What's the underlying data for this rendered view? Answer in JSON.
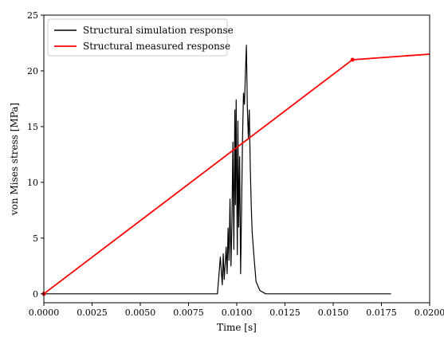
{
  "chart_data": {
    "type": "line",
    "xlabel": "Time [s]",
    "ylabel": "von Mises stress [MPa]",
    "xlim": [
      0,
      0.02
    ],
    "ylim": [
      -0.8,
      25
    ],
    "x_ticks": [
      0,
      0.0025,
      0.005,
      0.0075,
      0.01,
      0.0125,
      0.015,
      0.0175,
      0.02
    ],
    "x_tick_labels": [
      "0.0000",
      "0.0025",
      "0.0050",
      "0.0075",
      "0.0100",
      "0.0125",
      "0.0150",
      "0.0175",
      "0.0200"
    ],
    "y_ticks": [
      0,
      5,
      10,
      15,
      20,
      25
    ],
    "y_tick_labels": [
      "0",
      "5",
      "10",
      "15",
      "20",
      "25"
    ],
    "grid": false,
    "legend_position": "top-left",
    "series": [
      {
        "name": "Structural simulation response",
        "color": "#000000",
        "x": [
          0.0,
          0.009,
          0.00915,
          0.00925,
          0.0093,
          0.00935,
          0.0094,
          0.00945,
          0.0095,
          0.00955,
          0.0096,
          0.00965,
          0.0097,
          0.00975,
          0.0098,
          0.00985,
          0.0099,
          0.00993,
          0.00997,
          0.01,
          0.01003,
          0.01006,
          0.0101,
          0.01015,
          0.0102,
          0.01025,
          0.0103,
          0.01035,
          0.0104,
          0.01045,
          0.0105,
          0.01055,
          0.0106,
          0.01065,
          0.0107,
          0.01075,
          0.0108,
          0.0109,
          0.011,
          0.0112,
          0.0115,
          0.0118,
          0.018
        ],
        "y": [
          0.0,
          0.0,
          3.3,
          0.8,
          3.6,
          1.3,
          2.6,
          4.2,
          1.8,
          5.9,
          3.0,
          8.5,
          2.5,
          6.5,
          13.6,
          4.0,
          16.5,
          8.0,
          17.4,
          9.3,
          3.5,
          15.5,
          6.0,
          12.3,
          1.8,
          7.5,
          14.0,
          18.0,
          17.0,
          19.8,
          22.3,
          16.7,
          14.0,
          16.5,
          11.5,
          8.0,
          5.5,
          3.2,
          1.1,
          0.3,
          0.0,
          0.0,
          0.0
        ]
      },
      {
        "name": "Structural measured response",
        "color": "#ff0000",
        "x": [
          0.0,
          0.016,
          0.02
        ],
        "y": [
          0.0,
          21.0,
          21.5
        ],
        "markers_at": [
          0,
          1
        ]
      }
    ]
  }
}
